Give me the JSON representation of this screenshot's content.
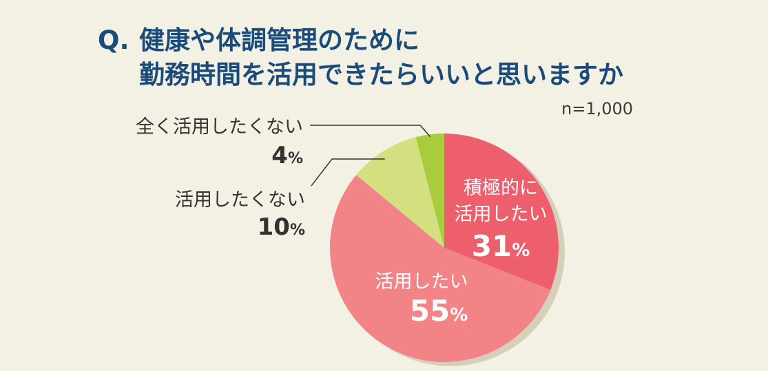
{
  "header": {
    "q_label": "Q.",
    "title_line1": "健康や体調管理のために",
    "title_line2": "勤務時間を活用できたらいいと思いますか",
    "sample_size": "n=1,000"
  },
  "chart_data": {
    "type": "pie",
    "title": "健康や体調管理のために勤務時間を活用できたらいいと思いますか",
    "note": "n=1,000",
    "slices": [
      {
        "label": "積極的に活用したい",
        "label_lines": [
          "積極的に",
          "活用したい"
        ],
        "value": 31,
        "value_text": "31",
        "unit": "%",
        "color": "#ee5f6d"
      },
      {
        "label": "活用したい",
        "label_lines": [
          "活用したい"
        ],
        "value": 55,
        "value_text": "55",
        "unit": "%",
        "color": "#f28386"
      },
      {
        "label": "活用したくない",
        "label_lines": [
          "活用したくない"
        ],
        "value": 10,
        "value_text": "10",
        "unit": "%",
        "color": "#d4e07f"
      },
      {
        "label": "全く活用したくない",
        "label_lines": [
          "全く活用したくない"
        ],
        "value": 4,
        "value_text": "4",
        "unit": "%",
        "color": "#a8cc3c"
      }
    ],
    "shadow_color": "#d6d0bb",
    "leader_color": "#333333",
    "inner_text_color": "#ffffff",
    "outer_text_color": "#333333"
  }
}
